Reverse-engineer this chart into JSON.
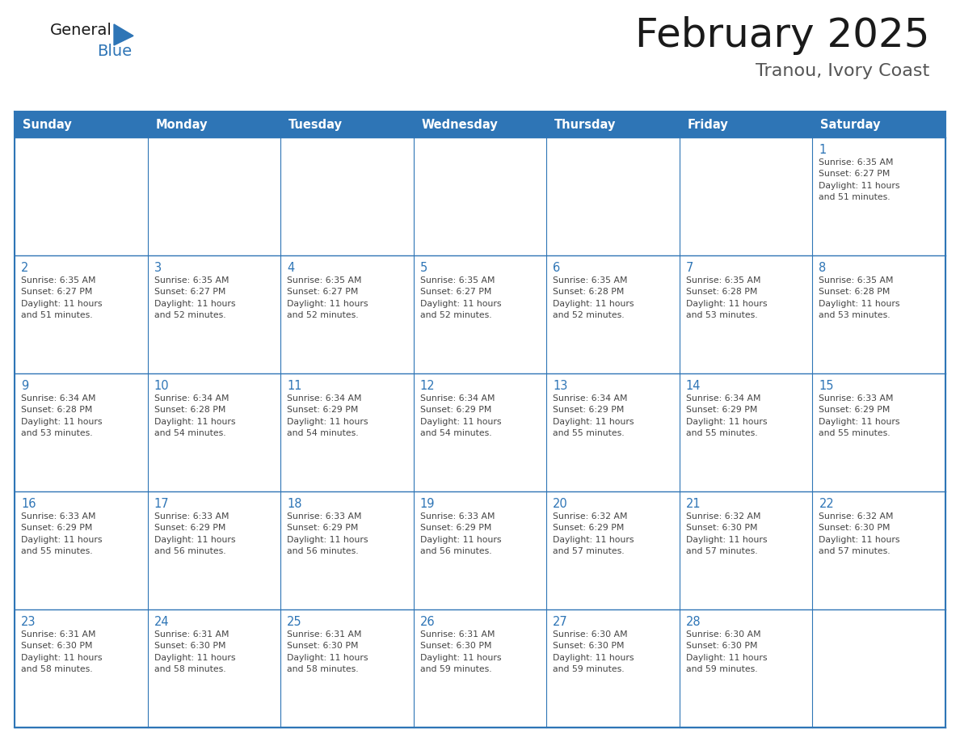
{
  "title": "February 2025",
  "subtitle": "Tranou, Ivory Coast",
  "header_bg": "#2E75B6",
  "header_text_color": "#FFFFFF",
  "cell_bg": "#FFFFFF",
  "cell_bg_alt": "#EEF3F9",
  "cell_text_color": "#444444",
  "day_num_color": "#2E75B6",
  "grid_line_color": "#2E75B6",
  "days_of_week": [
    "Sunday",
    "Monday",
    "Tuesday",
    "Wednesday",
    "Thursday",
    "Friday",
    "Saturday"
  ],
  "weeks": [
    [
      {
        "day": null,
        "info": null
      },
      {
        "day": null,
        "info": null
      },
      {
        "day": null,
        "info": null
      },
      {
        "day": null,
        "info": null
      },
      {
        "day": null,
        "info": null
      },
      {
        "day": null,
        "info": null
      },
      {
        "day": 1,
        "info": "Sunrise: 6:35 AM\nSunset: 6:27 PM\nDaylight: 11 hours\nand 51 minutes."
      }
    ],
    [
      {
        "day": 2,
        "info": "Sunrise: 6:35 AM\nSunset: 6:27 PM\nDaylight: 11 hours\nand 51 minutes."
      },
      {
        "day": 3,
        "info": "Sunrise: 6:35 AM\nSunset: 6:27 PM\nDaylight: 11 hours\nand 52 minutes."
      },
      {
        "day": 4,
        "info": "Sunrise: 6:35 AM\nSunset: 6:27 PM\nDaylight: 11 hours\nand 52 minutes."
      },
      {
        "day": 5,
        "info": "Sunrise: 6:35 AM\nSunset: 6:27 PM\nDaylight: 11 hours\nand 52 minutes."
      },
      {
        "day": 6,
        "info": "Sunrise: 6:35 AM\nSunset: 6:28 PM\nDaylight: 11 hours\nand 52 minutes."
      },
      {
        "day": 7,
        "info": "Sunrise: 6:35 AM\nSunset: 6:28 PM\nDaylight: 11 hours\nand 53 minutes."
      },
      {
        "day": 8,
        "info": "Sunrise: 6:35 AM\nSunset: 6:28 PM\nDaylight: 11 hours\nand 53 minutes."
      }
    ],
    [
      {
        "day": 9,
        "info": "Sunrise: 6:34 AM\nSunset: 6:28 PM\nDaylight: 11 hours\nand 53 minutes."
      },
      {
        "day": 10,
        "info": "Sunrise: 6:34 AM\nSunset: 6:28 PM\nDaylight: 11 hours\nand 54 minutes."
      },
      {
        "day": 11,
        "info": "Sunrise: 6:34 AM\nSunset: 6:29 PM\nDaylight: 11 hours\nand 54 minutes."
      },
      {
        "day": 12,
        "info": "Sunrise: 6:34 AM\nSunset: 6:29 PM\nDaylight: 11 hours\nand 54 minutes."
      },
      {
        "day": 13,
        "info": "Sunrise: 6:34 AM\nSunset: 6:29 PM\nDaylight: 11 hours\nand 55 minutes."
      },
      {
        "day": 14,
        "info": "Sunrise: 6:34 AM\nSunset: 6:29 PM\nDaylight: 11 hours\nand 55 minutes."
      },
      {
        "day": 15,
        "info": "Sunrise: 6:33 AM\nSunset: 6:29 PM\nDaylight: 11 hours\nand 55 minutes."
      }
    ],
    [
      {
        "day": 16,
        "info": "Sunrise: 6:33 AM\nSunset: 6:29 PM\nDaylight: 11 hours\nand 55 minutes."
      },
      {
        "day": 17,
        "info": "Sunrise: 6:33 AM\nSunset: 6:29 PM\nDaylight: 11 hours\nand 56 minutes."
      },
      {
        "day": 18,
        "info": "Sunrise: 6:33 AM\nSunset: 6:29 PM\nDaylight: 11 hours\nand 56 minutes."
      },
      {
        "day": 19,
        "info": "Sunrise: 6:33 AM\nSunset: 6:29 PM\nDaylight: 11 hours\nand 56 minutes."
      },
      {
        "day": 20,
        "info": "Sunrise: 6:32 AM\nSunset: 6:29 PM\nDaylight: 11 hours\nand 57 minutes."
      },
      {
        "day": 21,
        "info": "Sunrise: 6:32 AM\nSunset: 6:30 PM\nDaylight: 11 hours\nand 57 minutes."
      },
      {
        "day": 22,
        "info": "Sunrise: 6:32 AM\nSunset: 6:30 PM\nDaylight: 11 hours\nand 57 minutes."
      }
    ],
    [
      {
        "day": 23,
        "info": "Sunrise: 6:31 AM\nSunset: 6:30 PM\nDaylight: 11 hours\nand 58 minutes."
      },
      {
        "day": 24,
        "info": "Sunrise: 6:31 AM\nSunset: 6:30 PM\nDaylight: 11 hours\nand 58 minutes."
      },
      {
        "day": 25,
        "info": "Sunrise: 6:31 AM\nSunset: 6:30 PM\nDaylight: 11 hours\nand 58 minutes."
      },
      {
        "day": 26,
        "info": "Sunrise: 6:31 AM\nSunset: 6:30 PM\nDaylight: 11 hours\nand 59 minutes."
      },
      {
        "day": 27,
        "info": "Sunrise: 6:30 AM\nSunset: 6:30 PM\nDaylight: 11 hours\nand 59 minutes."
      },
      {
        "day": 28,
        "info": "Sunrise: 6:30 AM\nSunset: 6:30 PM\nDaylight: 11 hours\nand 59 minutes."
      },
      {
        "day": null,
        "info": null
      }
    ]
  ],
  "logo_text_general": "General",
  "logo_text_blue": "Blue",
  "logo_color_general": "#1a1a1a",
  "logo_color_blue": "#2E75B6",
  "logo_triangle_color": "#2E75B6",
  "title_color": "#1a1a1a",
  "subtitle_color": "#555555"
}
